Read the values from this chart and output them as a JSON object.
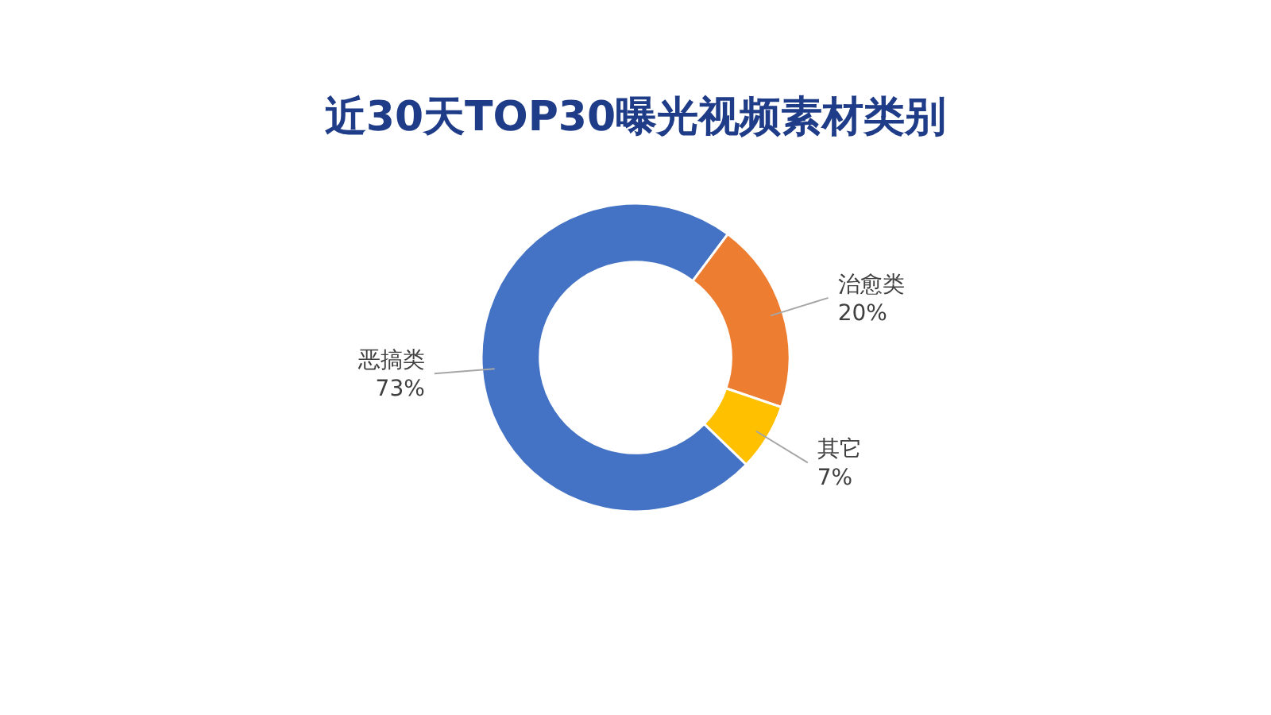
{
  "chart_data": {
    "type": "donut",
    "title": "近30天TOP30曝光视频素材类别",
    "categories": [
      "恶搞类",
      "治愈类",
      "其它"
    ],
    "values": [
      73,
      20,
      7
    ],
    "value_labels": [
      "73%",
      "20%",
      "7%"
    ],
    "colors": [
      "#4472c4",
      "#ed7d31",
      "#ffc000"
    ]
  }
}
